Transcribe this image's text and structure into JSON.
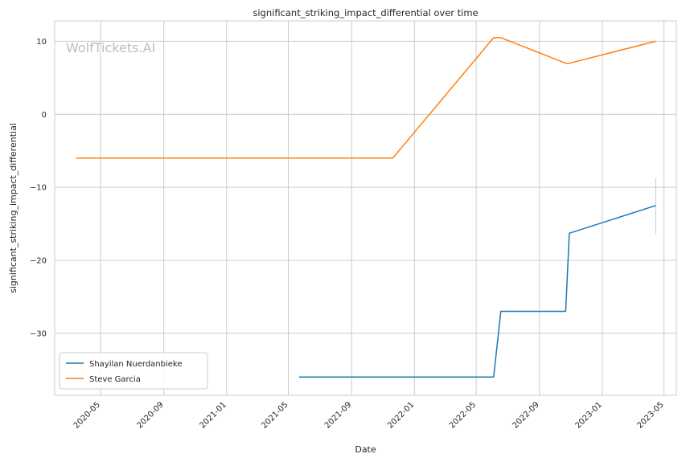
{
  "chart_data": {
    "type": "line",
    "title": "significant_striking_impact_differential over time",
    "xlabel": "Date",
    "ylabel": "significant_striking_impact_differential",
    "watermark": "WolfTickets.AI",
    "x_axis_type": "date",
    "xlim": [
      "2020-02-02",
      "2023-05-25"
    ],
    "ylim": [
      -38.5,
      12.8
    ],
    "x_ticks": [
      "2020-05-01",
      "2020-09-01",
      "2021-01-01",
      "2021-05-01",
      "2021-09-01",
      "2022-01-01",
      "2022-05-01",
      "2022-09-01",
      "2023-01-01",
      "2023-05-01"
    ],
    "x_tick_labels": [
      "2020-05",
      "2020-09",
      "2021-01",
      "2021-05",
      "2021-09",
      "2022-01",
      "2022-05",
      "2022-09",
      "2023-01",
      "2023-05"
    ],
    "y_ticks": [
      10,
      0,
      -10,
      -20,
      -30
    ],
    "y_tick_labels": [
      "10",
      "0",
      "−10",
      "−20",
      "−30"
    ],
    "grid": true,
    "legend_position": "lower-left",
    "series": [
      {
        "name": "Shayilan Nuerdanbieke",
        "color": "#1f77b4",
        "x": [
          "2021-05-22",
          "2022-06-04",
          "2022-06-18",
          "2022-10-22",
          "2022-10-29",
          "2023-04-15"
        ],
        "y": [
          -36,
          -36,
          -27,
          -27,
          -16.3,
          -12.5
        ]
      },
      {
        "name": "Steve Garcia",
        "color": "#ff7f0e",
        "x": [
          "2020-03-14",
          "2021-11-20",
          "2022-06-04",
          "2022-06-18",
          "2022-10-22",
          "2022-10-29",
          "2023-04-15"
        ],
        "y": [
          -6,
          -6,
          10.5,
          10.5,
          7,
          7,
          10
        ]
      }
    ],
    "error_bar": {
      "color": "#1f77b4",
      "x": "2023-04-15",
      "low": -16.5,
      "high": -8.7
    }
  }
}
